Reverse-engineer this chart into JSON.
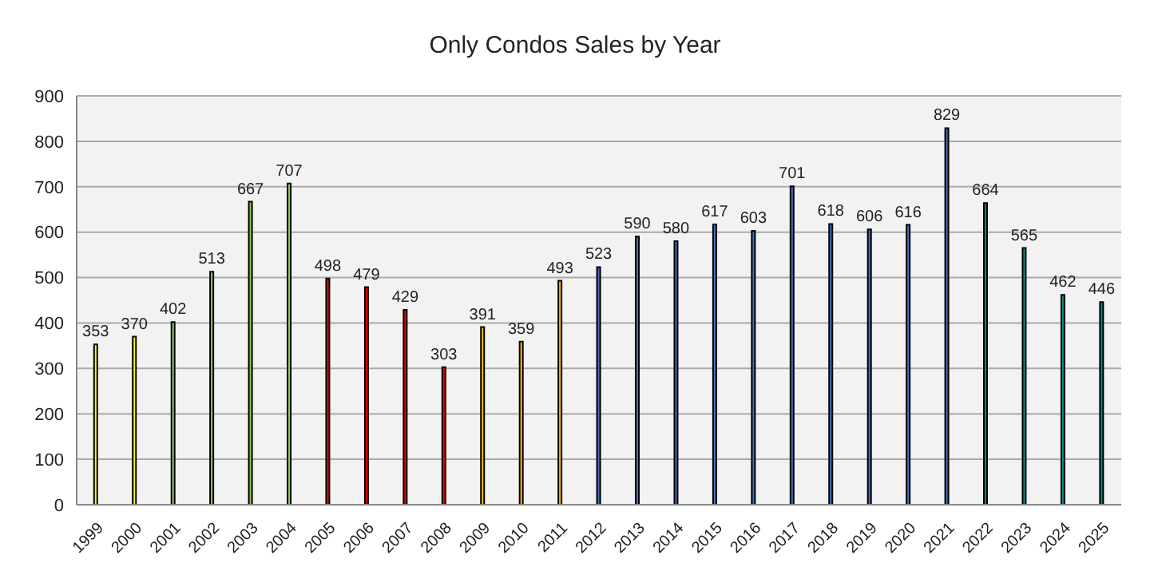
{
  "chart_data": {
    "type": "bar",
    "title": "Only Condos Sales by Year",
    "categories": [
      "1999",
      "2000",
      "2001",
      "2002",
      "2003",
      "2004",
      "2005",
      "2006",
      "2007",
      "2008",
      "2009",
      "2010",
      "2011",
      "2012",
      "2013",
      "2014",
      "2015",
      "2016",
      "2017",
      "2018",
      "2019",
      "2020",
      "2021",
      "2022",
      "2023",
      "2024",
      "2025"
    ],
    "values": [
      353,
      370,
      402,
      513,
      667,
      707,
      498,
      479,
      429,
      303,
      391,
      359,
      493,
      523,
      590,
      580,
      617,
      603,
      701,
      618,
      606,
      616,
      829,
      664,
      565,
      462,
      446
    ],
    "colors": [
      "#ffff00",
      "#ffff00",
      "#92d050",
      "#92d050",
      "#92d050",
      "#92d050",
      "#ff0000",
      "#ff0000",
      "#ff0000",
      "#ff0000",
      "#ffc000",
      "#ffc000",
      "#ffc000",
      "#4472c4",
      "#4472c4",
      "#4472c4",
      "#4472c4",
      "#4472c4",
      "#4472c4",
      "#4472c4",
      "#4472c4",
      "#4472c4",
      "#4472c4",
      "#00908a",
      "#00908a",
      "#00908a",
      "#00908a"
    ],
    "ylim": [
      0,
      900
    ],
    "yticks": [
      0,
      100,
      200,
      300,
      400,
      500,
      600,
      700,
      800,
      900
    ],
    "grid": "y",
    "data_labels": true
  }
}
